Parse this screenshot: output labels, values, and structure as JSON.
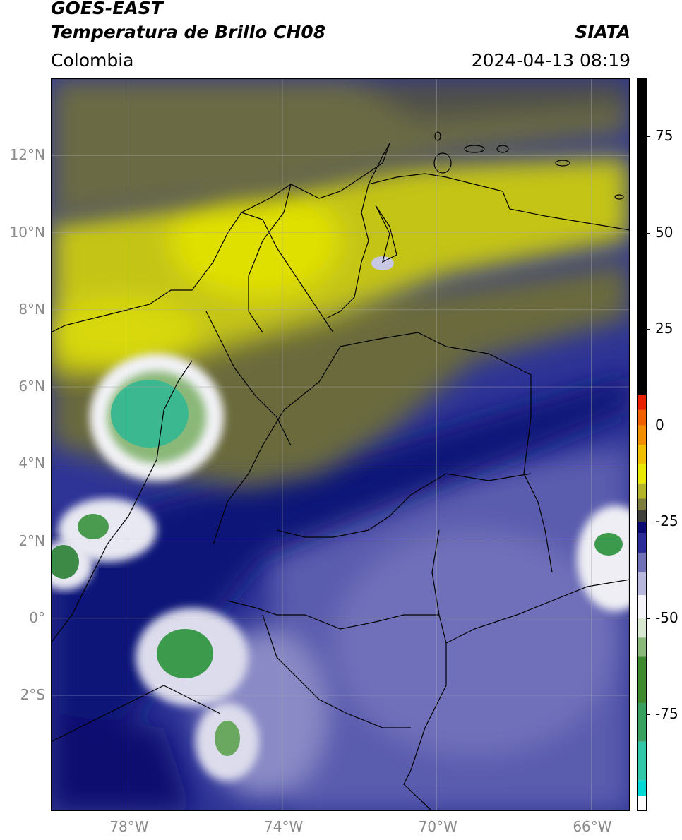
{
  "header": {
    "satellite": "GOES-EAST",
    "product": "Temperatura de Brillo CH08",
    "region": "Colombia",
    "agency": "SIATA",
    "timestamp": "2024-04-13 08:19"
  },
  "map": {
    "lon_range": [
      -80,
      -65
    ],
    "lat_range": [
      -5,
      14
    ],
    "lon_ticks": [
      {
        "value": -78,
        "label": "78°W"
      },
      {
        "value": -74,
        "label": "74°W"
      },
      {
        "value": -70,
        "label": "70°W"
      },
      {
        "value": -66,
        "label": "66°W"
      }
    ],
    "lat_ticks": [
      {
        "value": 12,
        "label": "12°N"
      },
      {
        "value": 10,
        "label": "10°N"
      },
      {
        "value": 8,
        "label": "8°N"
      },
      {
        "value": 6,
        "label": "6°N"
      },
      {
        "value": 4,
        "label": "4°N"
      },
      {
        "value": 2,
        "label": "2°N"
      },
      {
        "value": 0,
        "label": "0°"
      },
      {
        "value": -2,
        "label": "2°S"
      }
    ],
    "gridlines": true,
    "colors": {
      "background_blue": "#2c329a",
      "deep_blue": "#0c0e76",
      "yellow": "#d6d60c",
      "olive": "#6e6e38",
      "gray": "#56564e",
      "cold_white": "#f2f2f6",
      "green": "#3c9a46",
      "teal": "#3cbfa0",
      "boundary": "#000000"
    }
  },
  "colorbar": {
    "range": [
      -100,
      90
    ],
    "labels": [
      {
        "value": 75,
        "label": "75"
      },
      {
        "value": 50,
        "label": "50"
      },
      {
        "value": 25,
        "label": "25"
      },
      {
        "value": 0,
        "label": "0"
      },
      {
        "value": -25,
        "label": "-25"
      },
      {
        "value": -50,
        "label": "-50"
      },
      {
        "value": -75,
        "label": "-75"
      }
    ],
    "segments": [
      {
        "from": -100,
        "to": -96,
        "color": "#ffffff"
      },
      {
        "from": -96,
        "to": -92,
        "color": "#00d8d8"
      },
      {
        "from": -92,
        "to": -82,
        "color": "#30c8a8"
      },
      {
        "from": -82,
        "to": -72,
        "color": "#3aa060"
      },
      {
        "from": -72,
        "to": -60,
        "color": "#3c8a2c"
      },
      {
        "from": -60,
        "to": -55,
        "color": "#8ab878"
      },
      {
        "from": -55,
        "to": -50,
        "color": "#d8e8d0"
      },
      {
        "from": -50,
        "to": -44,
        "color": "#f4f4f8"
      },
      {
        "from": -44,
        "to": -38,
        "color": "#b8b8dc"
      },
      {
        "from": -38,
        "to": -33,
        "color": "#7070b8"
      },
      {
        "from": -33,
        "to": -28,
        "color": "#2c2c98"
      },
      {
        "from": -28,
        "to": -25,
        "color": "#0a0a72"
      },
      {
        "from": -25,
        "to": -22,
        "color": "#40403c"
      },
      {
        "from": -22,
        "to": -19,
        "color": "#7c7c3c"
      },
      {
        "from": -19,
        "to": -15,
        "color": "#b4b428"
      },
      {
        "from": -15,
        "to": -10,
        "color": "#e8e800"
      },
      {
        "from": -10,
        "to": -5,
        "color": "#f0c000"
      },
      {
        "from": -5,
        "to": 0,
        "color": "#f09000"
      },
      {
        "from": 0,
        "to": 4,
        "color": "#f06000"
      },
      {
        "from": 4,
        "to": 8,
        "color": "#e82000"
      },
      {
        "from": 8,
        "to": 90,
        "color": "#000000"
      }
    ]
  }
}
